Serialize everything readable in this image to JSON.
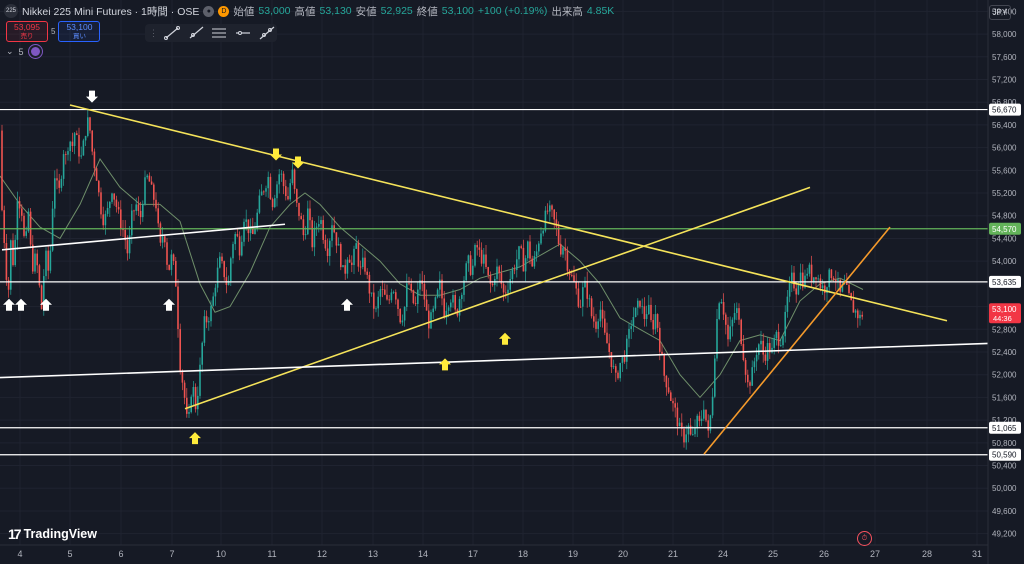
{
  "header": {
    "symbol_badge": "225",
    "title": "Nikkei 225 Mini Futures · 1時間 · OSE",
    "badge_d": "D",
    "ohlc": [
      {
        "k": "始値",
        "v": "53,000"
      },
      {
        "k": "高値",
        "v": "53,130"
      },
      {
        "k": "安値",
        "v": "52,925"
      },
      {
        "k": "終値",
        "v": "53,100"
      }
    ],
    "change": "+100 (+0.19%)",
    "volume_label": "出来高",
    "volume": "4.85K"
  },
  "trade": {
    "sell_price": "53,095",
    "sell_label": "売り",
    "spread": "5",
    "buy_price": "53,100",
    "buy_label": "買い"
  },
  "indicator": {
    "count": "5"
  },
  "currency": "JPY",
  "brand": "TradingView",
  "colors": {
    "up": "#26a69a",
    "down": "#ef5350",
    "bg": "#161a25",
    "grid": "#1f2330",
    "sma": "#6f8f6a",
    "yellow": "#f5e35a",
    "orange": "#f59a2b",
    "white_line": "#ffffff",
    "green_line": "#63b35a",
    "price_label": "#f23645"
  },
  "chart_data": {
    "type": "candlestick",
    "xlabel": "",
    "ylabel": "",
    "ylim": [
      49000,
      58600
    ],
    "y_ticks": [
      49200,
      49600,
      50000,
      50400,
      50800,
      51200,
      51600,
      52000,
      52400,
      52800,
      53200,
      53600,
      54000,
      54400,
      54800,
      55200,
      55600,
      56000,
      56400,
      56800,
      57200,
      57600,
      58000,
      58400
    ],
    "x_tick_labels": [
      "4",
      "5",
      "6",
      "7",
      "10",
      "11",
      "12",
      "13",
      "14",
      "17",
      "18",
      "19",
      "20",
      "21",
      "24",
      "25",
      "26",
      "27",
      "28",
      "31"
    ],
    "current_price": "53,100",
    "countdown": "44:36",
    "level_labels": [
      {
        "value": 56670,
        "label": "56,670",
        "kind": "white"
      },
      {
        "value": 54570,
        "label": "54,570",
        "kind": "green"
      },
      {
        "value": 53635,
        "label": "53,635",
        "kind": "white"
      },
      {
        "value": 51065,
        "label": "51,065",
        "kind": "white"
      },
      {
        "value": 50590,
        "label": "50,590",
        "kind": "white"
      }
    ],
    "close_path": [
      [
        0,
        56300
      ],
      [
        2,
        54900
      ],
      [
        5,
        54200
      ],
      [
        8,
        53300
      ],
      [
        11,
        54400
      ],
      [
        14,
        53800
      ],
      [
        17,
        55200
      ],
      [
        20,
        55000
      ],
      [
        23,
        54800
      ],
      [
        25,
        54000
      ],
      [
        28,
        55000
      ],
      [
        30,
        54300
      ],
      [
        33,
        53900
      ],
      [
        36,
        54100
      ],
      [
        39,
        53600
      ],
      [
        42,
        53100
      ],
      [
        45,
        54200
      ],
      [
        48,
        53800
      ],
      [
        51,
        54300
      ],
      [
        54,
        55600
      ],
      [
        57,
        55300
      ],
      [
        60,
        55200
      ],
      [
        63,
        56000
      ],
      [
        66,
        55800
      ],
      [
        69,
        56200
      ],
      [
        72,
        56000
      ],
      [
        75,
        56300
      ],
      [
        78,
        56000
      ],
      [
        81,
        55800
      ],
      [
        84,
        56100
      ],
      [
        87,
        56500
      ],
      [
        90,
        56300
      ],
      [
        93,
        55800
      ],
      [
        96,
        55600
      ],
      [
        100,
        55000
      ],
      [
        104,
        54700
      ],
      [
        108,
        54900
      ],
      [
        112,
        55300
      ],
      [
        116,
        55000
      ],
      [
        120,
        54700
      ],
      [
        124,
        54500
      ],
      [
        128,
        54100
      ],
      [
        132,
        54800
      ],
      [
        136,
        55000
      ],
      [
        140,
        54700
      ],
      [
        144,
        55300
      ],
      [
        148,
        55500
      ],
      [
        152,
        55200
      ],
      [
        156,
        55000
      ],
      [
        160,
        54200
      ],
      [
        164,
        54600
      ],
      [
        168,
        53800
      ],
      [
        172,
        54100
      ],
      [
        176,
        53600
      ],
      [
        180,
        52200
      ],
      [
        184,
        51700
      ],
      [
        188,
        51000
      ],
      [
        192,
        51900
      ],
      [
        196,
        51400
      ],
      [
        200,
        52100
      ],
      [
        204,
        52900
      ],
      [
        208,
        53000
      ],
      [
        212,
        53200
      ],
      [
        216,
        53700
      ],
      [
        220,
        54000
      ],
      [
        224,
        53800
      ],
      [
        228,
        53500
      ],
      [
        232,
        54300
      ],
      [
        236,
        54500
      ],
      [
        240,
        54200
      ],
      [
        244,
        54800
      ],
      [
        248,
        54600
      ],
      [
        252,
        54400
      ],
      [
        256,
        54700
      ],
      [
        260,
        55100
      ],
      [
        264,
        55300
      ],
      [
        268,
        55500
      ],
      [
        272,
        55000
      ],
      [
        276,
        55300
      ],
      [
        280,
        55600
      ],
      [
        284,
        55300
      ],
      [
        288,
        55100
      ],
      [
        292,
        55600
      ],
      [
        296,
        55000
      ],
      [
        300,
        54800
      ],
      [
        304,
        54400
      ],
      [
        308,
        54900
      ],
      [
        312,
        54300
      ],
      [
        316,
        54600
      ],
      [
        320,
        54800
      ],
      [
        324,
        54400
      ],
      [
        328,
        54200
      ],
      [
        332,
        54700
      ],
      [
        336,
        54400
      ],
      [
        340,
        54100
      ],
      [
        344,
        53700
      ],
      [
        348,
        54200
      ],
      [
        352,
        53900
      ],
      [
        356,
        54300
      ],
      [
        360,
        53800
      ],
      [
        364,
        54000
      ],
      [
        368,
        53600
      ],
      [
        372,
        53300
      ],
      [
        376,
        53100
      ],
      [
        380,
        53500
      ],
      [
        384,
        53400
      ],
      [
        388,
        53200
      ],
      [
        392,
        53600
      ],
      [
        396,
        53400
      ],
      [
        400,
        53000
      ],
      [
        404,
        53100
      ],
      [
        408,
        53700
      ],
      [
        412,
        53300
      ],
      [
        416,
        53200
      ],
      [
        420,
        53700
      ],
      [
        424,
        53400
      ],
      [
        428,
        52900
      ],
      [
        432,
        53000
      ],
      [
        436,
        53300
      ],
      [
        440,
        53600
      ],
      [
        444,
        53100
      ],
      [
        448,
        53300
      ],
      [
        452,
        53400
      ],
      [
        456,
        53000
      ],
      [
        460,
        53400
      ],
      [
        464,
        53700
      ],
      [
        468,
        54000
      ],
      [
        472,
        53800
      ],
      [
        476,
        54300
      ],
      [
        480,
        54100
      ],
      [
        484,
        54000
      ],
      [
        488,
        53700
      ],
      [
        492,
        53500
      ],
      [
        496,
        53900
      ],
      [
        500,
        53700
      ],
      [
        504,
        53400
      ],
      [
        508,
        53600
      ],
      [
        512,
        53800
      ],
      [
        516,
        54000
      ],
      [
        520,
        54200
      ],
      [
        524,
        53900
      ],
      [
        528,
        54300
      ],
      [
        532,
        53900
      ],
      [
        536,
        54100
      ],
      [
        540,
        54500
      ],
      [
        544,
        54700
      ],
      [
        548,
        54900
      ],
      [
        552,
        54800
      ],
      [
        556,
        54600
      ],
      [
        560,
        54200
      ],
      [
        564,
        54300
      ],
      [
        568,
        53900
      ],
      [
        572,
        53700
      ],
      [
        576,
        53500
      ],
      [
        580,
        53200
      ],
      [
        584,
        53600
      ],
      [
        588,
        53400
      ],
      [
        592,
        53000
      ],
      [
        596,
        52900
      ],
      [
        600,
        53200
      ],
      [
        604,
        52700
      ],
      [
        608,
        52500
      ],
      [
        612,
        52200
      ],
      [
        616,
        51900
      ],
      [
        620,
        52200
      ],
      [
        624,
        52300
      ],
      [
        628,
        52600
      ],
      [
        632,
        53000
      ],
      [
        636,
        53100
      ],
      [
        640,
        53300
      ],
      [
        644,
        53000
      ],
      [
        648,
        53200
      ],
      [
        652,
        52800
      ],
      [
        656,
        53100
      ],
      [
        660,
        52500
      ],
      [
        664,
        52000
      ],
      [
        668,
        51800
      ],
      [
        672,
        51500
      ],
      [
        676,
        51300
      ],
      [
        680,
        51000
      ],
      [
        684,
        50900
      ],
      [
        688,
        51100
      ],
      [
        692,
        50800
      ],
      [
        696,
        51200
      ],
      [
        700,
        51100
      ],
      [
        704,
        51500
      ],
      [
        708,
        50900
      ],
      [
        712,
        51500
      ],
      [
        716,
        52800
      ],
      [
        720,
        53500
      ],
      [
        724,
        53100
      ],
      [
        728,
        52600
      ],
      [
        732,
        52900
      ],
      [
        736,
        53200
      ],
      [
        740,
        52800
      ],
      [
        744,
        52300
      ],
      [
        748,
        51800
      ],
      [
        752,
        52000
      ],
      [
        756,
        52400
      ],
      [
        760,
        52600
      ],
      [
        764,
        52300
      ],
      [
        768,
        52500
      ],
      [
        772,
        52400
      ],
      [
        776,
        52700
      ],
      [
        780,
        52600
      ],
      [
        784,
        52800
      ],
      [
        788,
        53400
      ],
      [
        792,
        53700
      ],
      [
        796,
        53500
      ],
      [
        800,
        53800
      ],
      [
        804,
        53600
      ],
      [
        808,
        53900
      ],
      [
        812,
        53700
      ],
      [
        816,
        53800
      ],
      [
        820,
        53600
      ],
      [
        824,
        53500
      ],
      [
        828,
        53700
      ],
      [
        832,
        53800
      ],
      [
        836,
        53700
      ],
      [
        840,
        53400
      ],
      [
        844,
        53600
      ],
      [
        848,
        53400
      ],
      [
        852,
        53200
      ],
      [
        856,
        53100
      ],
      [
        860,
        53000
      ],
      [
        863,
        53100
      ]
    ],
    "sma_path": [
      [
        0,
        55500
      ],
      [
        20,
        55000
      ],
      [
        40,
        54600
      ],
      [
        60,
        54400
      ],
      [
        80,
        55000
      ],
      [
        100,
        55800
      ],
      [
        120,
        55300
      ],
      [
        140,
        55000
      ],
      [
        160,
        55000
      ],
      [
        180,
        54700
      ],
      [
        200,
        53600
      ],
      [
        215,
        53100
      ],
      [
        230,
        53200
      ],
      [
        250,
        53800
      ],
      [
        270,
        54600
      ],
      [
        290,
        55000
      ],
      [
        305,
        55200
      ],
      [
        320,
        55000
      ],
      [
        340,
        54600
      ],
      [
        360,
        54300
      ],
      [
        380,
        54000
      ],
      [
        400,
        53600
      ],
      [
        420,
        53400
      ],
      [
        440,
        53400
      ],
      [
        460,
        53500
      ],
      [
        480,
        53700
      ],
      [
        500,
        53800
      ],
      [
        520,
        53900
      ],
      [
        540,
        54100
      ],
      [
        560,
        54300
      ],
      [
        580,
        54000
      ],
      [
        600,
        53600
      ],
      [
        620,
        53000
      ],
      [
        640,
        52800
      ],
      [
        660,
        52600
      ],
      [
        680,
        52000
      ],
      [
        700,
        51600
      ],
      [
        720,
        52000
      ],
      [
        740,
        52600
      ],
      [
        760,
        52700
      ],
      [
        780,
        52600
      ],
      [
        800,
        53300
      ],
      [
        820,
        53600
      ],
      [
        840,
        53700
      ],
      [
        863,
        53500
      ]
    ],
    "trendlines": [
      {
        "kind": "yellow",
        "from": [
          70,
          56750
        ],
        "to": [
          947,
          52950
        ]
      },
      {
        "kind": "yellow",
        "from": [
          185,
          51400
        ],
        "to": [
          810,
          55300
        ]
      },
      {
        "kind": "orange",
        "from": [
          704,
          50600
        ],
        "to": [
          890,
          54600
        ]
      },
      {
        "kind": "white",
        "from": [
          2,
          54200
        ],
        "to": [
          285,
          54650
        ]
      },
      {
        "kind": "white",
        "from": [
          0,
          51950
        ],
        "to": [
          988,
          52550
        ]
      }
    ],
    "horizontal_levels": [
      {
        "kind": "white",
        "value": 56670
      },
      {
        "kind": "green",
        "value": 54570
      },
      {
        "kind": "white",
        "value": 53635
      },
      {
        "kind": "white",
        "value": 51065
      },
      {
        "kind": "white",
        "value": 50590
      }
    ],
    "arrows": [
      {
        "x": 92,
        "value": 56880,
        "dir": "down",
        "color": "white"
      },
      {
        "x": 276,
        "value": 55860,
        "dir": "down",
        "color": "yellow"
      },
      {
        "x": 298,
        "value": 55720,
        "dir": "down",
        "color": "yellow"
      },
      {
        "x": 9,
        "value": 53250,
        "dir": "up",
        "color": "white"
      },
      {
        "x": 21,
        "value": 53250,
        "dir": "up",
        "color": "white"
      },
      {
        "x": 46,
        "value": 53250,
        "dir": "up",
        "color": "white"
      },
      {
        "x": 169,
        "value": 53250,
        "dir": "up",
        "color": "white"
      },
      {
        "x": 347,
        "value": 53250,
        "dir": "up",
        "color": "white"
      },
      {
        "x": 505,
        "value": 52650,
        "dir": "up",
        "color": "yellow"
      },
      {
        "x": 445,
        "value": 52200,
        "dir": "up",
        "color": "yellow"
      },
      {
        "x": 195,
        "value": 50900,
        "dir": "up",
        "color": "yellow"
      }
    ]
  }
}
